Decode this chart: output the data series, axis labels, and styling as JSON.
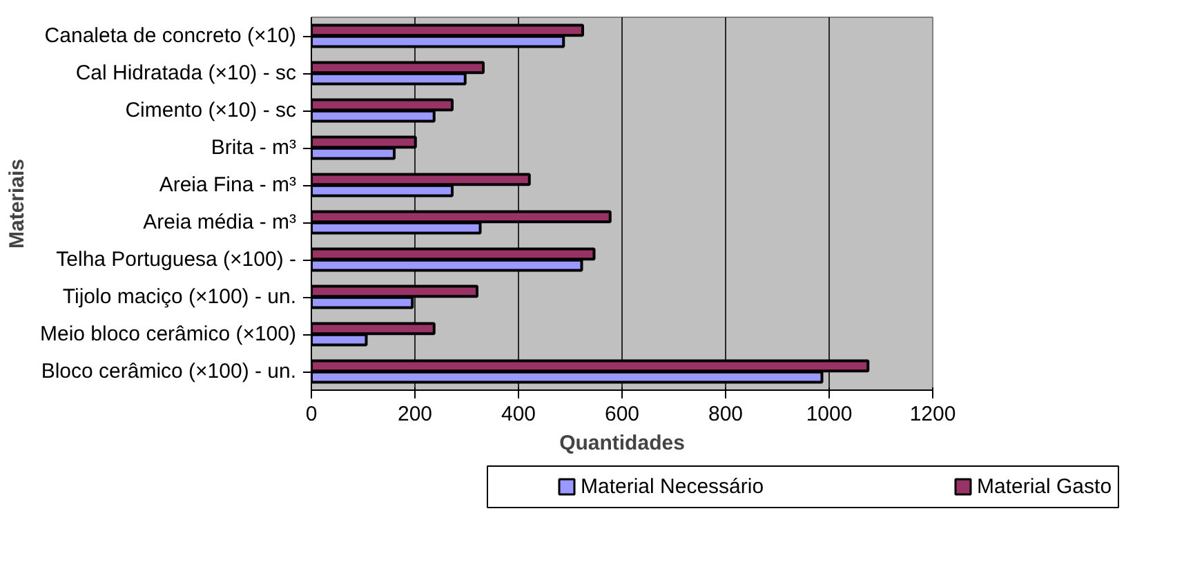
{
  "chart_data": {
    "type": "bar",
    "orientation": "horizontal",
    "xlabel": "Quantidades",
    "ylabel": "Materiais",
    "categories": [
      "Canaleta de concreto (×10)",
      "Cal Hidratada (×10) - sc",
      "Cimento (×10) - sc",
      "Brita - m³",
      "Areia Fina - m³",
      "Areia média - m³",
      "Telha Portuguesa (×100) -",
      "Tijolo maciço (×100) - un.",
      "Meio bloco cerâmico (×100)",
      "Bloco cerâmico (×100) - un."
    ],
    "series": [
      {
        "name": "Material Necessário",
        "color": "#9999ff",
        "values": [
          487,
          297,
          237,
          160,
          272,
          326,
          522,
          195,
          106,
          986
        ]
      },
      {
        "name": "Material Gasto",
        "color": "#993366",
        "values": [
          524,
          332,
          272,
          201,
          421,
          577,
          546,
          320,
          237,
          1075
        ]
      }
    ],
    "xlim": [
      0,
      1200
    ],
    "xticks": [
      0,
      200,
      400,
      600,
      800,
      1000,
      1200
    ],
    "grid": "x",
    "legend": "bottom"
  }
}
